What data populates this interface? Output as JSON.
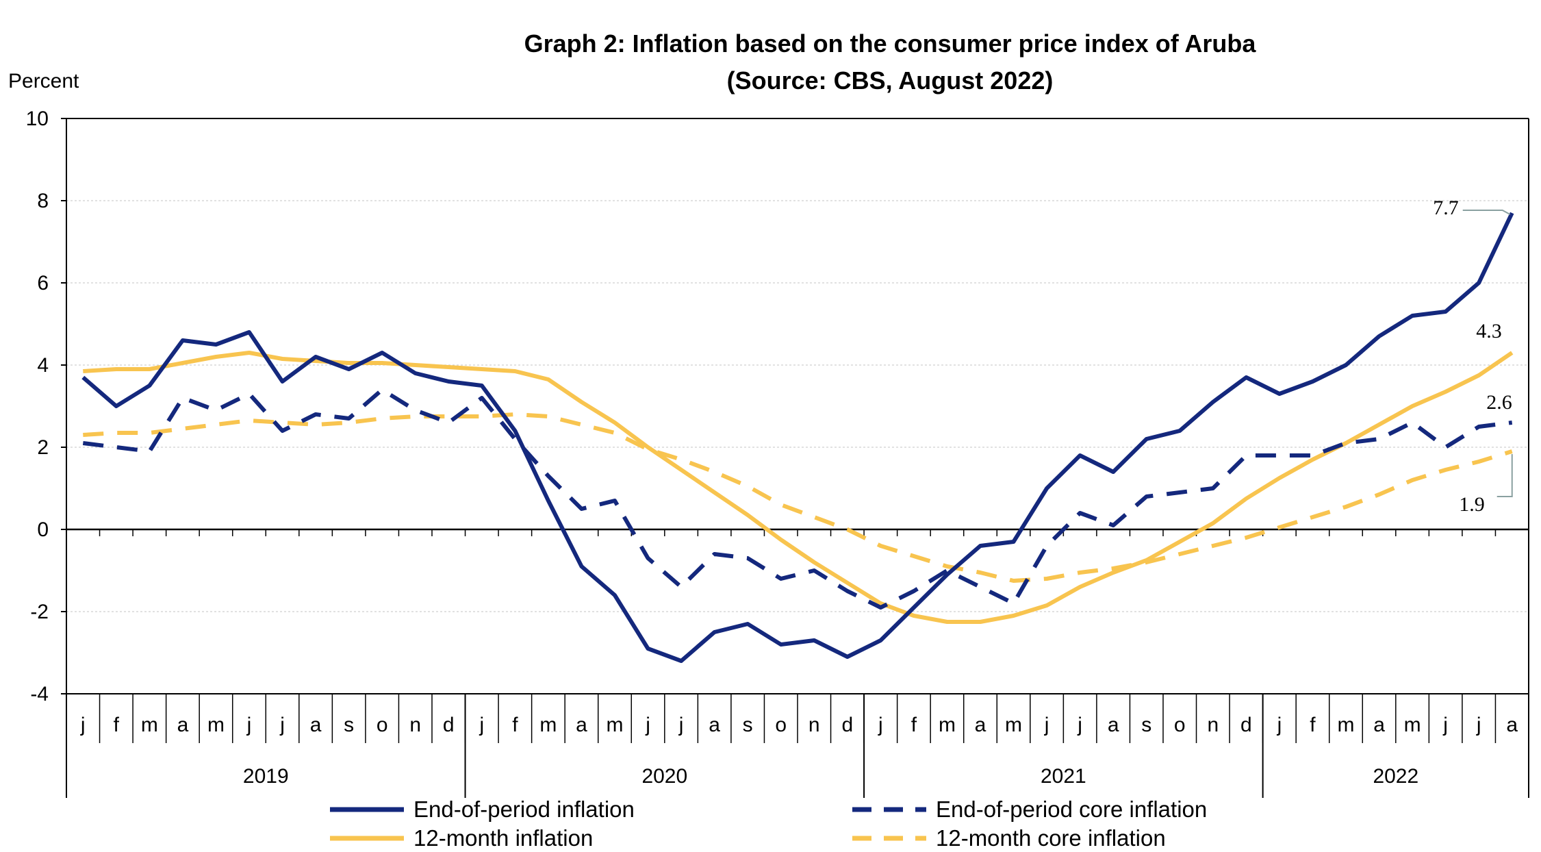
{
  "chart_data": {
    "type": "line",
    "title_line1": "Graph 2: Inflation based on the consumer price index of Aruba",
    "title_line2": "(Source: CBS, August 2022)",
    "ylabel": "Percent",
    "ylim": [
      -4,
      10
    ],
    "yticks": [
      -4,
      -2,
      0,
      2,
      4,
      6,
      8,
      10
    ],
    "ytick_labels": [
      "-4",
      "-2",
      "0",
      "2",
      "4",
      "6",
      "8",
      "10"
    ],
    "grid": true,
    "months": [
      "j",
      "f",
      "m",
      "a",
      "m",
      "j",
      "j",
      "a",
      "s",
      "o",
      "n",
      "d",
      "j",
      "f",
      "m",
      "a",
      "m",
      "j",
      "j",
      "a",
      "s",
      "o",
      "n",
      "d",
      "j",
      "f",
      "m",
      "a",
      "m",
      "j",
      "j",
      "a",
      "s",
      "o",
      "n",
      "d",
      "j",
      "f",
      "m",
      "a",
      "m",
      "j",
      "j",
      "a"
    ],
    "years": [
      "2019",
      "2020",
      "2021",
      "2022"
    ],
    "legend_position": "bottom",
    "series": [
      {
        "name": "End-of-period inflation",
        "color": "#14287d",
        "dash": "solid",
        "values": [
          3.7,
          3.0,
          3.5,
          4.6,
          4.5,
          4.8,
          3.6,
          4.2,
          3.9,
          4.3,
          3.8,
          3.6,
          3.5,
          2.4,
          0.7,
          -0.9,
          -1.6,
          -2.9,
          -3.2,
          -2.5,
          -2.3,
          -2.8,
          -2.7,
          -3.1,
          -2.7,
          -1.9,
          -1.1,
          -0.4,
          -0.3,
          1.0,
          1.8,
          1.4,
          2.2,
          2.4,
          3.1,
          3.7,
          3.3,
          3.6,
          4.0,
          4.7,
          5.2,
          5.3,
          6.0,
          7.7
        ]
      },
      {
        "name": "End-of-period core inflation",
        "color": "#14287d",
        "dash": "dashed",
        "values": [
          2.1,
          2.0,
          1.9,
          3.2,
          2.9,
          3.3,
          2.4,
          2.8,
          2.7,
          3.4,
          2.9,
          2.6,
          3.2,
          2.2,
          1.3,
          0.5,
          0.7,
          -0.7,
          -1.4,
          -0.6,
          -0.7,
          -1.2,
          -1.0,
          -1.5,
          -1.9,
          -1.5,
          -1.0,
          -1.4,
          -1.8,
          -0.4,
          0.4,
          0.1,
          0.8,
          0.9,
          1.0,
          1.8,
          1.8,
          1.8,
          2.1,
          2.2,
          2.6,
          2.0,
          2.5,
          2.6
        ]
      },
      {
        "name": "12-month inflation",
        "color": "#f8c44f",
        "dash": "solid",
        "values": [
          3.85,
          3.9,
          3.9,
          4.05,
          4.2,
          4.3,
          4.15,
          4.1,
          4.05,
          4.05,
          4.0,
          3.95,
          3.9,
          3.85,
          3.65,
          3.1,
          2.6,
          2.0,
          1.45,
          0.9,
          0.35,
          -0.25,
          -0.8,
          -1.3,
          -1.8,
          -2.1,
          -2.25,
          -2.25,
          -2.1,
          -1.85,
          -1.4,
          -1.05,
          -0.75,
          -0.3,
          0.15,
          0.75,
          1.25,
          1.7,
          2.1,
          2.55,
          3.0,
          3.35,
          3.75,
          4.3
        ]
      },
      {
        "name": "12-month core inflation",
        "color": "#f8c44f",
        "dash": "dashed",
        "values": [
          2.3,
          2.35,
          2.35,
          2.45,
          2.55,
          2.65,
          2.6,
          2.55,
          2.6,
          2.7,
          2.75,
          2.75,
          2.75,
          2.8,
          2.75,
          2.55,
          2.35,
          1.95,
          1.7,
          1.4,
          1.05,
          0.6,
          0.3,
          0.0,
          -0.4,
          -0.65,
          -0.9,
          -1.05,
          -1.25,
          -1.2,
          -1.05,
          -0.95,
          -0.8,
          -0.6,
          -0.4,
          -0.2,
          0.05,
          0.3,
          0.55,
          0.85,
          1.2,
          1.45,
          1.65,
          1.9
        ]
      }
    ],
    "annotations": [
      {
        "text": "7.7",
        "series": 0
      },
      {
        "text": "4.3",
        "series": 2
      },
      {
        "text": "2.6",
        "series": 1
      },
      {
        "text": "1.9",
        "series": 3
      }
    ]
  }
}
